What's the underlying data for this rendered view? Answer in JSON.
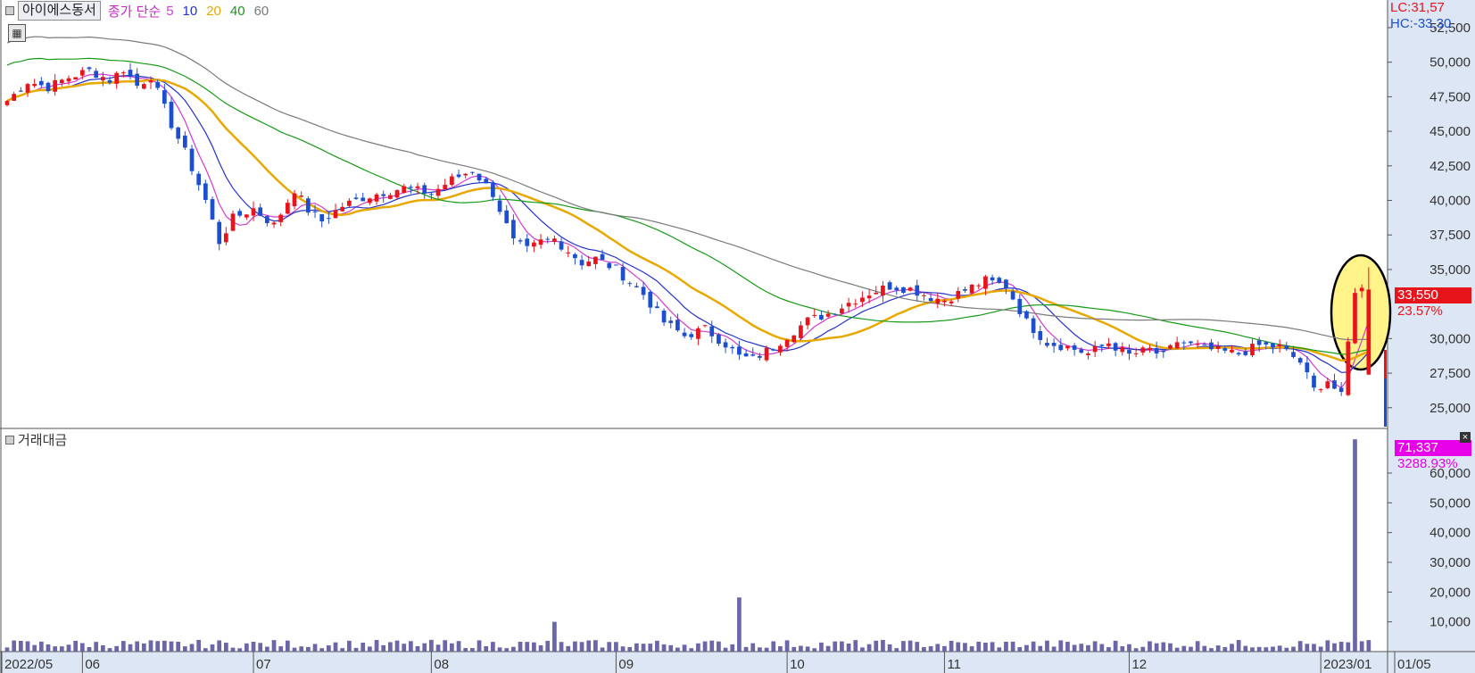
{
  "header": {
    "stock_name": "아이에스동서",
    "ma_title": "종가 단순",
    "ma_periods": [
      {
        "label": "5",
        "color": "#d23cd2"
      },
      {
        "label": "10",
        "color": "#2233cc"
      },
      {
        "label": "20",
        "color": "#e8a800"
      },
      {
        "label": "40",
        "color": "#169a16"
      },
      {
        "label": "60",
        "color": "#7a7a7a"
      }
    ]
  },
  "indicators": {
    "lc": "LC:31,57",
    "hc": "HC:-33,30"
  },
  "price_panel": {
    "current_price_label": "33,550",
    "change_pct": "23.57%"
  },
  "volume_panel": {
    "title": "거래대금",
    "current_value_label": "71,337",
    "change_pct": "3288.93%"
  },
  "colors": {
    "up": "#e8141c",
    "down": "#1c4fd0",
    "volume": "#6a66a8",
    "axis_bg": "#dde6f4",
    "highlight_fill": "#fff38a",
    "current_tag": "#e8141c",
    "volume_tag": "#e800e8"
  },
  "chart_data": [
    {
      "type": "candlestick",
      "y_axis_ticks": [
        "52,500",
        "50,000",
        "47,500",
        "45,000",
        "42,500",
        "40,000",
        "37,500",
        "35,000",
        "30,000",
        "27,500",
        "25,000"
      ],
      "y_axis_values": [
        52500,
        50000,
        47500,
        45000,
        42500,
        40000,
        37500,
        35000,
        30000,
        27500,
        25000
      ],
      "ylim": [
        23500,
        54500
      ],
      "x_tick_labels": [
        "2022/05",
        "06",
        "07",
        "08",
        "09",
        "10",
        "11",
        "12",
        "2023/01",
        "01/05"
      ],
      "x_tick_index": [
        0,
        11,
        36,
        62,
        89,
        114,
        137,
        164,
        192,
        202
      ],
      "x_range": [
        0,
        198.5
      ],
      "anchors_index": [
        0,
        3,
        6,
        9,
        12,
        15,
        17,
        19,
        21,
        24,
        26,
        29,
        31,
        33,
        36,
        39,
        42,
        44,
        46,
        49,
        52,
        55,
        58,
        62,
        65,
        68,
        71,
        74,
        76,
        78,
        80,
        84,
        86,
        89,
        93,
        96,
        99,
        102,
        105,
        107,
        109,
        112,
        114,
        117,
        120,
        123,
        126,
        129,
        132,
        135,
        137,
        140,
        143,
        146,
        149,
        152,
        155,
        158,
        161,
        164,
        167,
        169,
        171,
        174,
        177,
        180,
        183,
        186,
        189,
        191,
        193,
        195,
        197
      ],
      "anchors_close": [
        47200,
        48600,
        48200,
        48900,
        49400,
        48700,
        49500,
        48300,
        49000,
        45500,
        43500,
        40000,
        37000,
        38700,
        39400,
        38200,
        40800,
        39300,
        38500,
        39600,
        40200,
        40600,
        40900,
        40500,
        41500,
        42200,
        40500,
        37000,
        36400,
        37000,
        37200,
        35500,
        35800,
        35000,
        33200,
        31200,
        30200,
        30700,
        29600,
        28700,
        28500,
        29400,
        30200,
        31300,
        31800,
        32600,
        33300,
        33800,
        33600,
        33000,
        32800,
        33500,
        34200,
        33800,
        31200,
        29700,
        29400,
        28900,
        29700,
        28800,
        29200,
        28700,
        29800,
        29400,
        29100,
        28900,
        29500,
        29400,
        28300,
        26300,
        27000,
        25800,
        33550
      ],
      "ma_periods": [
        5,
        10,
        20,
        40,
        60
      ],
      "ohlc_generation": "interpolated between anchors"
    },
    {
      "type": "bar",
      "title": "거래대금",
      "y_axis_ticks": [
        "60,000",
        "50,000",
        "40,000",
        "30,000",
        "20,000",
        "10,000"
      ],
      "y_axis_values": [
        60000,
        50000,
        40000,
        30000,
        20000,
        10000
      ],
      "ylim": [
        0,
        75000
      ],
      "spikes": [
        {
          "index": 80,
          "value": 10000
        },
        {
          "index": 107,
          "value": 18200
        },
        {
          "index": 197,
          "value": 71337
        }
      ],
      "typical_value": 2200
    }
  ]
}
